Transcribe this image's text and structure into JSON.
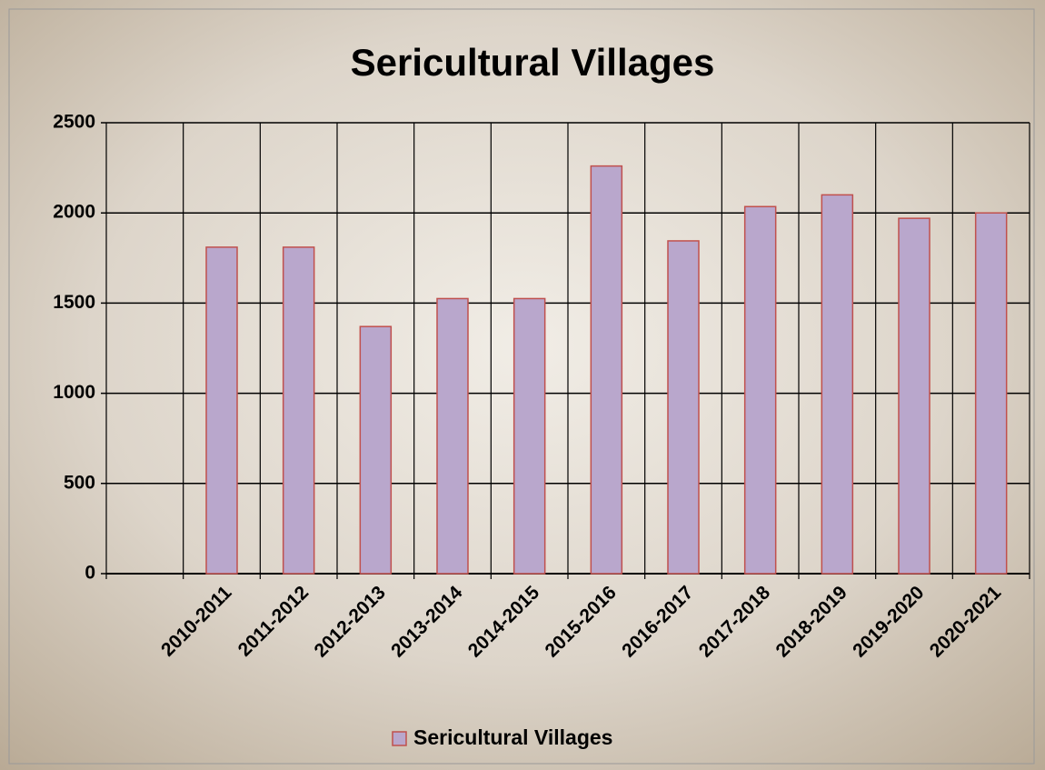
{
  "chart_data": {
    "type": "bar",
    "title": "Sericultural Villages",
    "categories": [
      null,
      "2010-2011",
      "2011-2012",
      "2012-2013",
      "2013-2014",
      "2014-2015",
      "2015-2016",
      "2016-2017",
      "2017-2018",
      "2018-2019",
      "2019-2020",
      "2020-2021"
    ],
    "series": [
      {
        "name": "Sericultural Villages",
        "color": "#b9a7cc",
        "values": [
          null,
          1810,
          1810,
          1370,
          1525,
          1525,
          2260,
          1845,
          2035,
          2100,
          1970,
          2000
        ]
      }
    ],
    "ylim": [
      0,
      2500
    ],
    "yticks": [
      0,
      500,
      1000,
      1500,
      2000,
      2500
    ],
    "grid": true,
    "legend": "bottom"
  }
}
